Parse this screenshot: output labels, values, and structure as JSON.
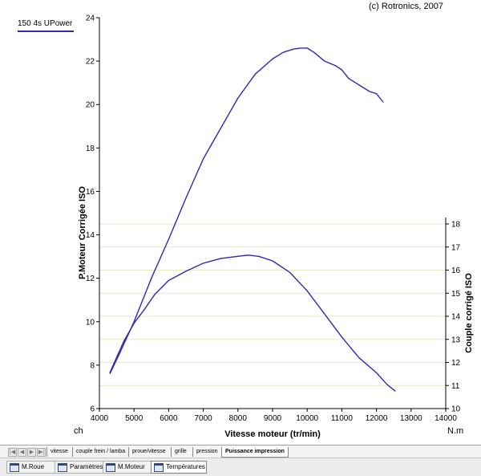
{
  "header": {
    "copyright": "(c) Rotronics, 2007",
    "legend_label": "150 4s UPower"
  },
  "chart_data": {
    "type": "line",
    "title": "",
    "xlabel": "Vitesse moteur (tr/min)",
    "ylabel_left": "P.Moteur Corrigée ISO",
    "ylabel_right": "Couple corrigé ISO",
    "unit_left": "ch",
    "unit_right": "N.m",
    "xlim": [
      4000,
      14000
    ],
    "ylim_left": [
      6,
      24
    ],
    "ylim_right": [
      10,
      18
    ],
    "x_ticks": [
      "4000",
      "5000",
      "6000",
      "7000",
      "8000",
      "9000",
      "10000",
      "11000",
      "12000",
      "13000",
      "14000"
    ],
    "y_left_ticks": [
      "6",
      "8",
      "10",
      "12",
      "14",
      "16",
      "18",
      "20",
      "22",
      "24"
    ],
    "y_right_ticks": [
      "10",
      "11",
      "12",
      "13",
      "14",
      "15",
      "16",
      "17",
      "18"
    ],
    "grid": true,
    "line_color": "#2b2bb0",
    "series": [
      {
        "axis": "left",
        "x": [
          4300,
          4600,
          5000,
          5500,
          6000,
          6500,
          7000,
          7500,
          8000,
          8500,
          9000,
          9300,
          9600,
          9800,
          10000,
          10200,
          10500,
          10800,
          11000,
          11200,
          11500,
          11800,
          12000,
          12200
        ],
        "y": [
          7.6,
          8.6,
          10.0,
          12.0,
          13.8,
          15.7,
          17.5,
          18.9,
          20.3,
          21.4,
          22.1,
          22.4,
          22.55,
          22.6,
          22.6,
          22.4,
          22.0,
          21.8,
          21.6,
          21.2,
          20.9,
          20.6,
          20.5,
          20.1
        ]
      },
      {
        "axis": "right",
        "x": [
          4300,
          4700,
          5000,
          5300,
          5600,
          6000,
          6500,
          7000,
          7500,
          8000,
          8300,
          8600,
          9000,
          9500,
          10000,
          10500,
          11000,
          11500,
          12000,
          12300,
          12550
        ],
        "y": [
          11.55,
          12.9,
          13.7,
          14.3,
          14.95,
          15.55,
          15.95,
          16.3,
          16.5,
          16.6,
          16.65,
          16.6,
          16.4,
          15.9,
          15.1,
          14.1,
          13.1,
          12.2,
          11.55,
          11.05,
          10.75
        ]
      }
    ]
  },
  "sheet_tabs": {
    "nav": [
      "|◀",
      "◀",
      "▶",
      "▶|"
    ],
    "items": [
      "vitesse",
      "couple frein / lamba",
      "proue/vitesse",
      "grille",
      "pression",
      "Puissance impression"
    ],
    "active": "Puissance impression"
  },
  "taskbar": {
    "items": [
      "M.Roue",
      "Paramètres",
      "M.Moteur",
      "Températures"
    ]
  }
}
